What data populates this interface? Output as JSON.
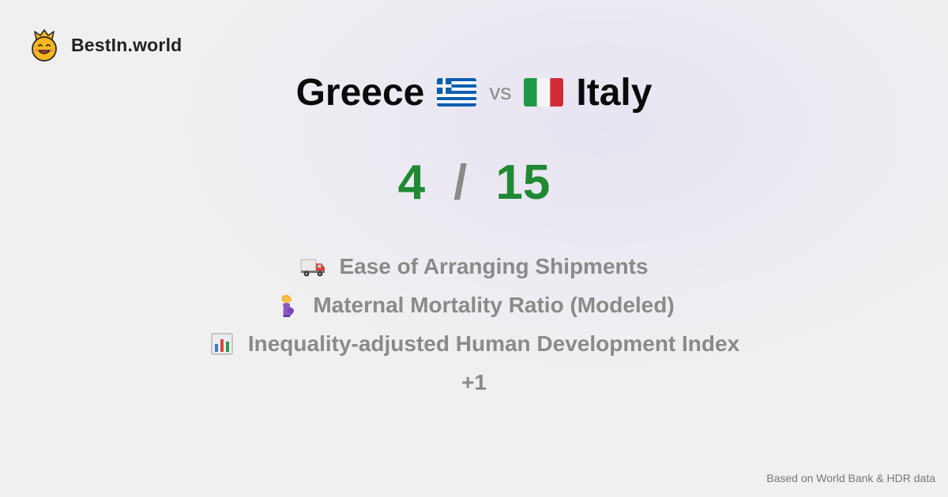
{
  "brand": {
    "name": "BestIn.world",
    "logo_icon": "crowned-smiley-icon"
  },
  "comparison": {
    "left_country": "Greece",
    "left_flag_icon": "greece-flag-icon",
    "vs_label": "vs",
    "right_country": "Italy",
    "right_flag_icon": "italy-flag-icon"
  },
  "score": {
    "left": "4",
    "separator": "/",
    "right": "15",
    "color": "#1f8a33"
  },
  "metrics": [
    {
      "icon": "delivery-truck-icon",
      "label": "Ease of Arranging Shipments"
    },
    {
      "icon": "pregnant-woman-icon",
      "label": "Maternal Mortality Ratio (Modeled)"
    },
    {
      "icon": "bar-chart-icon",
      "label": "Inequality-adjusted Human Development Index"
    }
  ],
  "more_label": "+1",
  "footer": {
    "source": "Based on World Bank & HDR data"
  }
}
